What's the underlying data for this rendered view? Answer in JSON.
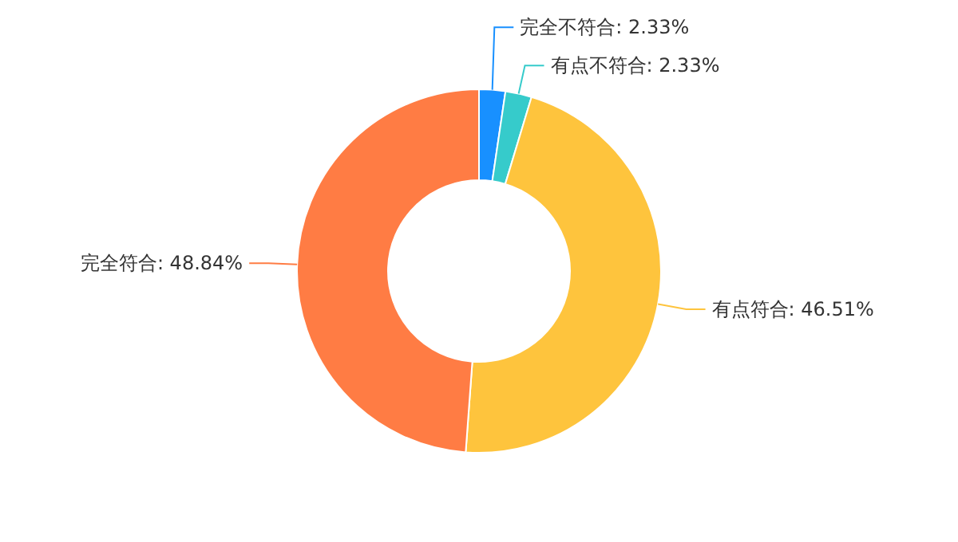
{
  "chart_data": {
    "type": "donut",
    "categories": [
      "完全不符合",
      "有点不符合",
      "有点符合",
      "完全符合"
    ],
    "values": [
      2.33,
      2.33,
      46.51,
      48.84
    ],
    "colors": [
      "#1890ff",
      "#36cbcb",
      "#fec43d",
      "#ff7c44"
    ],
    "value_labels": [
      "2.33%",
      "2.33%",
      "46.51%",
      "48.84%"
    ]
  }
}
